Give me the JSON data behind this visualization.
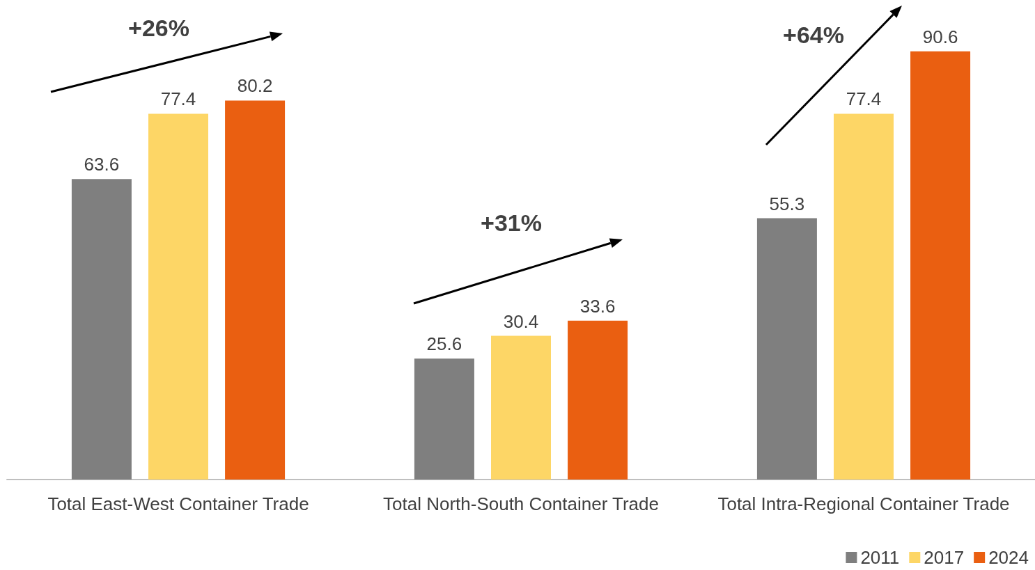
{
  "chart_data": {
    "type": "bar",
    "categories": [
      "Total East-West Container Trade",
      "Total North-South Container Trade",
      "Total Intra-Regional Container Trade"
    ],
    "series": [
      {
        "name": "2011",
        "color": "#7f7f7f",
        "values": [
          63.6,
          25.6,
          55.3
        ]
      },
      {
        "name": "2017",
        "color": "#fdd666",
        "values": [
          77.4,
          30.4,
          77.4
        ]
      },
      {
        "name": "2024",
        "color": "#ea5f11",
        "values": [
          80.2,
          33.6,
          90.6
        ]
      }
    ],
    "data_labels": true,
    "legend": "bottom right",
    "annotations": [
      "+26%",
      "+31%",
      "+64%"
    ]
  }
}
